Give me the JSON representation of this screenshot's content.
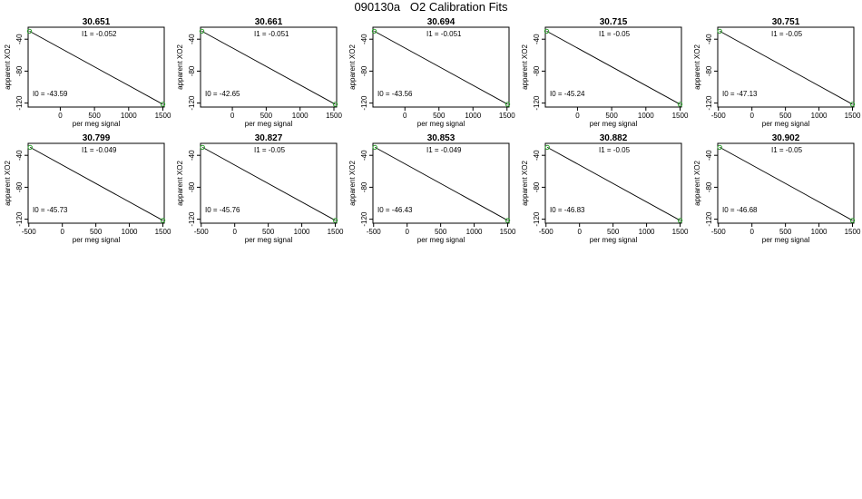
{
  "title": "090130a   O2 Calibration Fits",
  "chart_data": [
    {
      "type": "scatter",
      "title": "30.651",
      "xlabel": "per meg signal",
      "ylabel": "apparent XO2",
      "x_ticks": [
        "0",
        "500",
        "1000",
        "1500"
      ],
      "y_ticks": [
        "-40",
        "-80",
        "-120"
      ],
      "xlim": [
        -470,
        1520
      ],
      "ylim": [
        -125,
        -25
      ],
      "annotations": {
        "I1": "I1 =  -0.052",
        "I0": "I0 =  -43.59"
      },
      "points": [
        {
          "x": -450,
          "y": -30
        },
        {
          "x": 1500,
          "y": -121.5
        }
      ],
      "fit": {
        "x": [
          -450,
          1500
        ],
        "y": [
          -30,
          -121.5
        ]
      }
    },
    {
      "type": "scatter",
      "title": "30.661",
      "xlabel": "per meg signal",
      "ylabel": "apparent XO2",
      "x_ticks": [
        "0",
        "500",
        "1000",
        "1500"
      ],
      "y_ticks": [
        "-40",
        "-80",
        "-120"
      ],
      "xlim": [
        -470,
        1540
      ],
      "ylim": [
        -125,
        -25
      ],
      "annotations": {
        "I1": "I1 =  -0.051",
        "I0": "I0 =  -42.65"
      },
      "points": [
        {
          "x": -450,
          "y": -30
        },
        {
          "x": 1520,
          "y": -121.5
        }
      ],
      "fit": {
        "x": [
          -450,
          1520
        ],
        "y": [
          -30,
          -121.5
        ]
      }
    },
    {
      "type": "scatter",
      "title": "30.694",
      "xlabel": "per meg signal",
      "ylabel": "apparent XO2",
      "x_ticks": [
        "0",
        "500",
        "1000",
        "1500"
      ],
      "y_ticks": [
        "-40",
        "-80",
        "-120"
      ],
      "xlim": [
        -470,
        1530
      ],
      "ylim": [
        -125,
        -25
      ],
      "annotations": {
        "I1": "I1 =  -0.051",
        "I0": "I0 =  -43.56"
      },
      "points": [
        {
          "x": -450,
          "y": -30
        },
        {
          "x": 1510,
          "y": -121.5
        }
      ],
      "fit": {
        "x": [
          -450,
          1510
        ],
        "y": [
          -30,
          -121.5
        ]
      }
    },
    {
      "type": "scatter",
      "title": "30.715",
      "xlabel": "per meg signal",
      "ylabel": "apparent XO2",
      "x_ticks": [
        "0",
        "500",
        "1000",
        "1500"
      ],
      "y_ticks": [
        "-40",
        "-80",
        "-120"
      ],
      "xlim": [
        -470,
        1520
      ],
      "ylim": [
        -125,
        -25
      ],
      "annotations": {
        "I1": "I1 =  -0.05",
        "I0": "I0 =  -45.24"
      },
      "points": [
        {
          "x": -450,
          "y": -30
        },
        {
          "x": 1500,
          "y": -121.5
        }
      ],
      "fit": {
        "x": [
          -450,
          1500
        ],
        "y": [
          -30,
          -121.5
        ]
      }
    },
    {
      "type": "scatter",
      "title": "30.751",
      "xlabel": "per meg signal",
      "ylabel": "apparent XO2",
      "x_ticks": [
        "-500",
        "0",
        "500",
        "1000",
        "1500"
      ],
      "y_ticks": [
        "-40",
        "-80",
        "-120"
      ],
      "xlim": [
        -510,
        1520
      ],
      "ylim": [
        -125,
        -25
      ],
      "annotations": {
        "I1": "I1 =  -0.05",
        "I0": "I0 =  -47.13"
      },
      "points": [
        {
          "x": -480,
          "y": -30
        },
        {
          "x": 1500,
          "y": -121.5
        }
      ],
      "fit": {
        "x": [
          -480,
          1500
        ],
        "y": [
          -30,
          -121.5
        ]
      }
    },
    {
      "type": "scatter",
      "title": "30.799",
      "xlabel": "per meg signal",
      "ylabel": "apparent XO2",
      "x_ticks": [
        "-500",
        "0",
        "500",
        "1000",
        "1500"
      ],
      "y_ticks": [
        "-40",
        "-80",
        "-120"
      ],
      "xlim": [
        -510,
        1520
      ],
      "ylim": [
        -125,
        -25
      ],
      "annotations": {
        "I1": "I1 =  -0.049",
        "I0": "I0 =  -45.73"
      },
      "points": [
        {
          "x": -480,
          "y": -30
        },
        {
          "x": 1500,
          "y": -121.5
        }
      ],
      "fit": {
        "x": [
          -480,
          1500
        ],
        "y": [
          -30,
          -121.5
        ]
      }
    },
    {
      "type": "scatter",
      "title": "30.827",
      "xlabel": "per meg signal",
      "ylabel": "apparent XO2",
      "x_ticks": [
        "-500",
        "0",
        "500",
        "1000",
        "1500"
      ],
      "y_ticks": [
        "-40",
        "-80",
        "-120"
      ],
      "xlim": [
        -510,
        1520
      ],
      "ylim": [
        -125,
        -25
      ],
      "annotations": {
        "I1": "I1 =  -0.05",
        "I0": "I0 =  -45.76"
      },
      "points": [
        {
          "x": -480,
          "y": -30
        },
        {
          "x": 1500,
          "y": -121.5
        }
      ],
      "fit": {
        "x": [
          -480,
          1500
        ],
        "y": [
          -30,
          -121.5
        ]
      }
    },
    {
      "type": "scatter",
      "title": "30.853",
      "xlabel": "per meg signal",
      "ylabel": "apparent XO2",
      "x_ticks": [
        "-500",
        "0",
        "500",
        "1000",
        "1500"
      ],
      "y_ticks": [
        "-40",
        "-80",
        "-120"
      ],
      "xlim": [
        -510,
        1520
      ],
      "ylim": [
        -125,
        -25
      ],
      "annotations": {
        "I1": "I1 =  -0.049",
        "I0": "I0 =  -46.43"
      },
      "points": [
        {
          "x": -480,
          "y": -30
        },
        {
          "x": 1500,
          "y": -121.5
        }
      ],
      "fit": {
        "x": [
          -480,
          1500
        ],
        "y": [
          -30,
          -121.5
        ]
      }
    },
    {
      "type": "scatter",
      "title": "30.882",
      "xlabel": "per meg signal",
      "ylabel": "apparent XO2",
      "x_ticks": [
        "-500",
        "0",
        "500",
        "1000",
        "1500"
      ],
      "y_ticks": [
        "-40",
        "-80",
        "-120"
      ],
      "xlim": [
        -510,
        1520
      ],
      "ylim": [
        -125,
        -25
      ],
      "annotations": {
        "I1": "I1 =  -0.05",
        "I0": "I0 =  -46.83"
      },
      "points": [
        {
          "x": -480,
          "y": -30
        },
        {
          "x": 1500,
          "y": -121.5
        }
      ],
      "fit": {
        "x": [
          -480,
          1500
        ],
        "y": [
          -30,
          -121.5
        ]
      }
    },
    {
      "type": "scatter",
      "title": "30.902",
      "xlabel": "per meg signal",
      "ylabel": "apparent XO2",
      "x_ticks": [
        "-500",
        "0",
        "500",
        "1000",
        "1500"
      ],
      "y_ticks": [
        "-40",
        "-80",
        "-120"
      ],
      "xlim": [
        -510,
        1520
      ],
      "ylim": [
        -125,
        -25
      ],
      "annotations": {
        "I1": "I1 =  -0.05",
        "I0": "I0 =  -46.68"
      },
      "points": [
        {
          "x": -480,
          "y": -30
        },
        {
          "x": 1500,
          "y": -121.5
        }
      ],
      "fit": {
        "x": [
          -480,
          1500
        ],
        "y": [
          -30,
          -121.5
        ]
      }
    }
  ],
  "colors": {
    "axis": "#000000",
    "fit_line": "#000000",
    "point": "#2ca02c"
  }
}
